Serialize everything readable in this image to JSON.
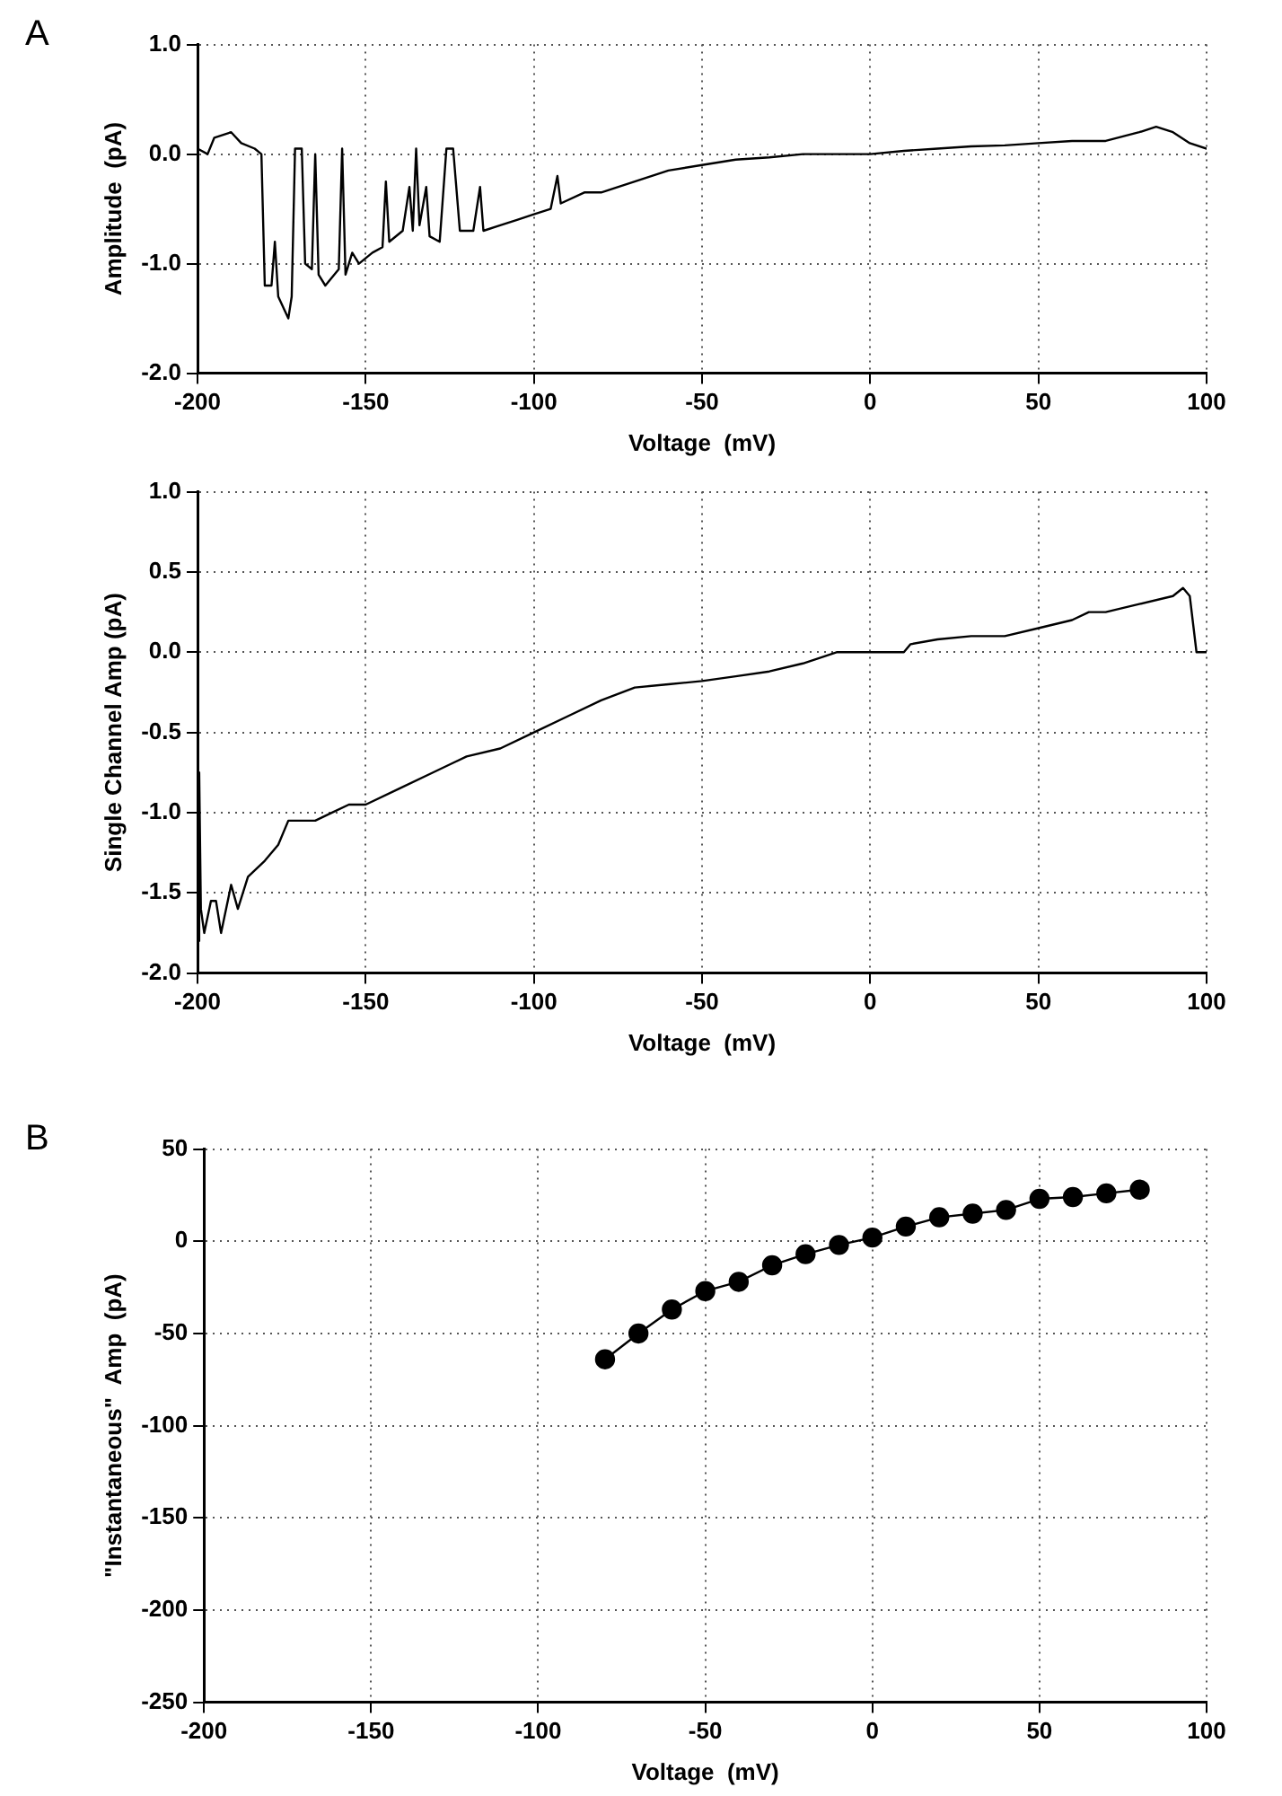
{
  "chart_data": [
    {
      "type": "line",
      "annotations": [
        "A"
      ],
      "xlabel": "Voltage  (mV)",
      "ylabel": "Amplitude  (pA)",
      "xlim": [
        -200,
        100
      ],
      "xticks": [
        -200,
        -150,
        -100,
        -50,
        0,
        50,
        100
      ],
      "ylim": [
        -2,
        1
      ],
      "yticks": [
        {
          "value": -2,
          "label": "-2.0"
        },
        {
          "value": -1,
          "label": "-1.0"
        },
        {
          "value": 0,
          "label": "0.0"
        },
        {
          "value": 1,
          "label": "1.0"
        }
      ],
      "grid": true,
      "legend": false,
      "marker": "none",
      "line_style": "solid",
      "series": [
        {
          "color": "#000000",
          "x": [
            -200,
            -197,
            -195,
            -190,
            -187,
            -183,
            -181,
            -180,
            -178,
            -177,
            -176,
            -173,
            -172,
            -171,
            -169,
            -168,
            -166,
            -165,
            -164,
            -162,
            -158,
            -157,
            -156,
            -154,
            -152,
            -148,
            -145,
            -144,
            -143,
            -139,
            -137,
            -136,
            -135,
            -134,
            -132,
            -131,
            -128,
            -126,
            -124,
            -122,
            -118,
            -116,
            -115,
            -110,
            -105,
            -100,
            -95,
            -93,
            -92,
            -85,
            -80,
            -70,
            -60,
            -50,
            -40,
            -30,
            -20,
            -10,
            0,
            10,
            20,
            30,
            40,
            50,
            60,
            70,
            80,
            85,
            90,
            95,
            100
          ],
          "values": [
            0.05,
            0.0,
            0.15,
            0.2,
            0.1,
            0.05,
            0.0,
            -1.2,
            -1.2,
            -0.8,
            -1.3,
            -1.5,
            -1.3,
            0.05,
            0.05,
            -1.0,
            -1.05,
            0.0,
            -1.1,
            -1.2,
            -1.05,
            0.05,
            -1.1,
            -0.9,
            -1.0,
            -0.9,
            -0.85,
            -0.25,
            -0.8,
            -0.7,
            -0.3,
            -0.7,
            0.05,
            -0.65,
            -0.3,
            -0.75,
            -0.8,
            0.05,
            0.05,
            -0.7,
            -0.7,
            -0.3,
            -0.7,
            -0.65,
            -0.6,
            -0.55,
            -0.5,
            -0.2,
            -0.45,
            -0.35,
            -0.35,
            -0.25,
            -0.15,
            -0.1,
            -0.05,
            -0.03,
            0.0,
            0.0,
            0.0,
            0.03,
            0.05,
            0.07,
            0.08,
            0.1,
            0.12,
            0.12,
            0.2,
            0.25,
            0.2,
            0.1,
            0.05
          ]
        }
      ]
    },
    {
      "type": "line",
      "xlabel": "Voltage  (mV)",
      "ylabel": "Single Channel Amp (pA)",
      "xlim": [
        -200,
        100
      ],
      "xticks": [
        -200,
        -150,
        -100,
        -50,
        0,
        50,
        100
      ],
      "ylim": [
        -2,
        1
      ],
      "yticks": [
        {
          "value": -2,
          "label": "-2.0"
        },
        {
          "value": -1.5,
          "label": "-1.5"
        },
        {
          "value": -1,
          "label": "-1.0"
        },
        {
          "value": -0.5,
          "label": "-0.5"
        },
        {
          "value": 0,
          "label": "0.0"
        },
        {
          "value": 0.5,
          "label": "0.5"
        },
        {
          "value": 1,
          "label": "1.0"
        }
      ],
      "grid": true,
      "legend": false,
      "marker": "none",
      "line_style": "solid",
      "series": [
        {
          "color": "#000000",
          "x": [
            -200,
            -199.5,
            -199,
            -198,
            -196,
            -194.5,
            -193,
            -190,
            -188,
            -185,
            -180,
            -176,
            -173,
            -165,
            -160,
            -155,
            -150,
            -140,
            -130,
            -120,
            -110,
            -100,
            -90,
            -80,
            -70,
            -60,
            -50,
            -40,
            -30,
            -20,
            -10,
            0,
            10,
            12,
            20,
            30,
            40,
            50,
            60,
            65,
            70,
            80,
            90,
            93,
            95,
            97,
            100
          ],
          "values": [
            -1.8,
            -0.75,
            -1.6,
            -1.75,
            -1.55,
            -1.55,
            -1.75,
            -1.45,
            -1.6,
            -1.4,
            -1.3,
            -1.2,
            -1.05,
            -1.05,
            -1.0,
            -0.95,
            -0.95,
            -0.85,
            -0.75,
            -0.65,
            -0.6,
            -0.5,
            -0.4,
            -0.3,
            -0.22,
            -0.2,
            -0.18,
            -0.15,
            -0.12,
            -0.07,
            0.0,
            0.0,
            0.0,
            0.05,
            0.08,
            0.1,
            0.1,
            0.15,
            0.2,
            0.25,
            0.25,
            0.3,
            0.35,
            0.4,
            0.35,
            0.0,
            0.0
          ]
        }
      ]
    },
    {
      "type": "line",
      "annotations": [
        "B"
      ],
      "xlabel": "Voltage  (mV)",
      "ylabel": "\"Instantaneous\"  Amp  (pA)",
      "xlim": [
        -200,
        100
      ],
      "xticks": [
        -200,
        -150,
        -100,
        -50,
        0,
        50,
        100
      ],
      "ylim": [
        -250,
        50
      ],
      "yticks": [
        -250,
        -200,
        -150,
        -100,
        -50,
        0,
        50
      ],
      "grid": true,
      "legend": false,
      "marker": "circle",
      "line_style": "solid",
      "series": [
        {
          "color": "#000000",
          "x": [
            -80,
            -70,
            -60,
            -50,
            -40,
            -30,
            -20,
            -10,
            0,
            10,
            20,
            30,
            40,
            50,
            60,
            70,
            80
          ],
          "values": [
            -64,
            -50,
            -37,
            -27,
            -22,
            -13,
            -7,
            -2,
            2,
            8,
            13,
            15,
            17,
            23,
            24,
            26,
            28
          ]
        }
      ]
    }
  ]
}
